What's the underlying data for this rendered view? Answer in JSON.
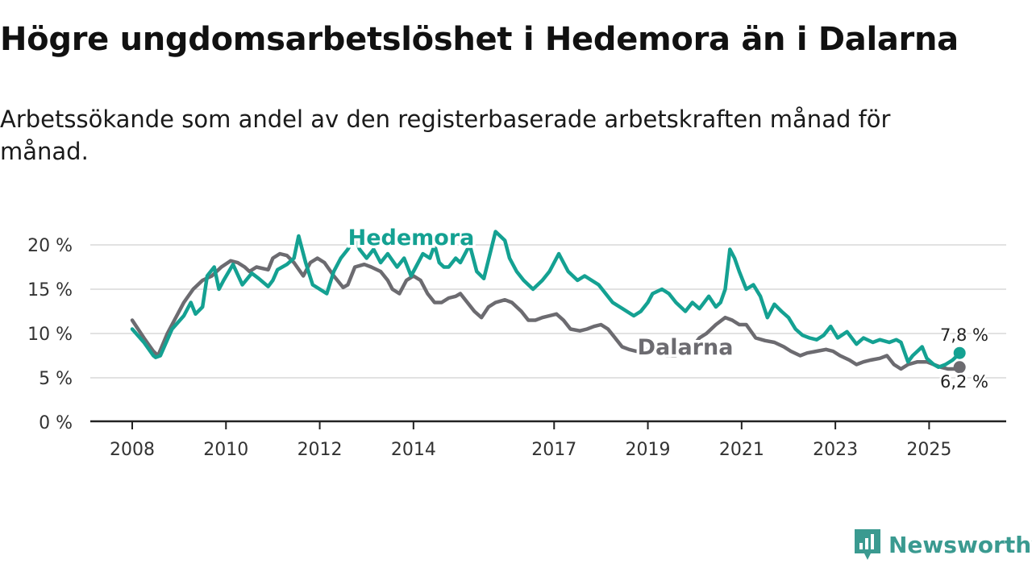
{
  "title": "Högre ungdomsarbetslöshet i Hedemora än i Dalarna",
  "subtitle": "Arbetssökande som andel av den registerbaserade arbetskraften månad för månad.",
  "brand": {
    "name": "Newsworthy",
    "color": "#3a9a90",
    "icon": "newsworthy-logo-icon"
  },
  "chart_data": {
    "type": "line",
    "ylim": [
      0,
      20
    ],
    "yticks": [
      0,
      5,
      10,
      15,
      20
    ],
    "ytick_labels": [
      "0 %",
      "5 %",
      "10 %",
      "15 %",
      "20 %"
    ],
    "xlim": [
      2008.0,
      2025.75
    ],
    "xticks": [
      2008,
      2010,
      2012,
      2014,
      2017,
      2019,
      2021,
      2023,
      2025
    ],
    "xtick_labels": [
      "2008",
      "2010",
      "2012",
      "2014",
      "2017",
      "2019",
      "2021",
      "2023",
      "2025"
    ],
    "grid": true,
    "series": [
      {
        "name": "Hedemora",
        "color": "#14a192",
        "label": "Hedemora",
        "end_label": "7,8 %",
        "x": [
          2008.0,
          2008.25,
          2008.45,
          2008.5,
          2008.6,
          2008.85,
          2009.1,
          2009.25,
          2009.35,
          2009.5,
          2009.6,
          2009.75,
          2009.85,
          2009.95,
          2010.15,
          2010.35,
          2010.55,
          2010.7,
          2010.9,
          2011.0,
          2011.1,
          2011.3,
          2011.45,
          2011.55,
          2011.7,
          2011.85,
          2012.0,
          2012.15,
          2012.3,
          2012.45,
          2012.6,
          2012.7,
          2012.75,
          2012.85,
          2013.0,
          2013.15,
          2013.3,
          2013.45,
          2013.65,
          2013.8,
          2013.95,
          2014.05,
          2014.2,
          2014.35,
          2014.45,
          2014.55,
          2014.65,
          2014.75,
          2014.9,
          2015.0,
          2015.1,
          2015.2,
          2015.35,
          2015.5,
          2015.75,
          2015.95,
          2016.05,
          2016.2,
          2016.35,
          2016.55,
          2016.75,
          2016.9,
          2017.1,
          2017.3,
          2017.5,
          2017.65,
          2017.8,
          2017.95,
          2018.1,
          2018.25,
          2018.4,
          2018.55,
          2018.7,
          2018.85,
          2019.0,
          2019.1,
          2019.3,
          2019.45,
          2019.6,
          2019.8,
          2019.95,
          2020.1,
          2020.3,
          2020.45,
          2020.55,
          2020.65,
          2020.75,
          2020.85,
          2020.95,
          2021.1,
          2021.25,
          2021.4,
          2021.55,
          2021.7,
          2021.85,
          2022.0,
          2022.15,
          2022.3,
          2022.45,
          2022.6,
          2022.75,
          2022.9,
          2023.05,
          2023.25,
          2023.45,
          2023.6,
          2023.8,
          2023.95,
          2024.15,
          2024.3,
          2024.4,
          2024.55,
          2024.65,
          2024.75,
          2024.85,
          2024.95,
          2025.1,
          2025.2,
          2025.35,
          2025.5,
          2025.6,
          2025.65
        ],
        "values": [
          10.5,
          9.0,
          7.5,
          7.3,
          7.5,
          10.5,
          12.0,
          13.5,
          12.2,
          13.0,
          16.5,
          17.5,
          15.0,
          16.0,
          17.8,
          15.5,
          16.8,
          16.2,
          15.3,
          16.0,
          17.2,
          17.8,
          18.5,
          21.0,
          18.0,
          15.5,
          15.0,
          14.5,
          17.0,
          18.5,
          19.5,
          20.5,
          20.8,
          19.5,
          18.5,
          19.5,
          18.0,
          19.0,
          17.5,
          18.5,
          16.5,
          17.5,
          19.0,
          18.5,
          20.0,
          18.0,
          17.5,
          17.5,
          18.5,
          18.0,
          19.0,
          20.0,
          17.0,
          16.2,
          21.5,
          20.5,
          18.5,
          17.0,
          16.0,
          15.0,
          16.0,
          17.0,
          19.0,
          17.0,
          16.0,
          16.5,
          16.0,
          15.5,
          14.5,
          13.5,
          13.0,
          12.5,
          12.0,
          12.5,
          13.5,
          14.5,
          15.0,
          14.5,
          13.5,
          12.5,
          13.5,
          12.8,
          14.2,
          13.0,
          13.5,
          15.0,
          19.5,
          18.5,
          17.0,
          15.0,
          15.5,
          14.2,
          11.8,
          13.3,
          12.5,
          11.8,
          10.5,
          9.8,
          9.5,
          9.3,
          9.8,
          10.8,
          9.5,
          10.2,
          8.8,
          9.5,
          9.0,
          9.3,
          9.0,
          9.3,
          9.0,
          6.8,
          7.5,
          8.0,
          8.5,
          7.2,
          6.5,
          6.2,
          6.5,
          7.0,
          7.5,
          7.8
        ]
      },
      {
        "name": "Dalarna",
        "color": "#6c6b70",
        "label": "Dalarna",
        "end_label": "6,2 %",
        "x": [
          2008.0,
          2008.25,
          2008.45,
          2008.55,
          2008.75,
          2008.9,
          2009.1,
          2009.3,
          2009.5,
          2009.7,
          2009.9,
          2010.1,
          2010.25,
          2010.4,
          2010.5,
          2010.65,
          2010.9,
          2011.0,
          2011.15,
          2011.3,
          2011.45,
          2011.65,
          2011.8,
          2011.95,
          2012.1,
          2012.3,
          2012.5,
          2012.6,
          2012.75,
          2012.95,
          2013.1,
          2013.3,
          2013.45,
          2013.55,
          2013.7,
          2013.85,
          2014.0,
          2014.15,
          2014.3,
          2014.45,
          2014.6,
          2014.75,
          2014.9,
          2015.0,
          2015.15,
          2015.3,
          2015.45,
          2015.6,
          2015.75,
          2015.95,
          2016.1,
          2016.3,
          2016.45,
          2016.6,
          2016.75,
          2016.9,
          2017.05,
          2017.2,
          2017.35,
          2017.55,
          2017.7,
          2017.85,
          2018.0,
          2018.15,
          2018.3,
          2018.45,
          2018.6,
          2018.75,
          2019.0,
          2019.1,
          2019.25,
          2019.4,
          2019.6,
          2019.75,
          2019.95,
          2020.1,
          2020.25,
          2020.45,
          2020.65,
          2020.8,
          2020.95,
          2021.1,
          2021.3,
          2021.5,
          2021.7,
          2021.9,
          2022.05,
          2022.25,
          2022.4,
          2022.6,
          2022.8,
          2022.95,
          2023.1,
          2023.3,
          2023.45,
          2023.6,
          2023.75,
          2023.95,
          2024.1,
          2024.25,
          2024.4,
          2024.55,
          2024.75,
          2024.95,
          2025.1,
          2025.25,
          2025.4,
          2025.55,
          2025.65
        ],
        "values": [
          11.5,
          9.5,
          8.0,
          7.5,
          10.0,
          11.5,
          13.5,
          15.0,
          16.0,
          16.5,
          17.5,
          18.2,
          18.0,
          17.5,
          17.0,
          17.5,
          17.2,
          18.5,
          19.0,
          18.8,
          18.0,
          16.5,
          18.0,
          18.5,
          18.0,
          16.5,
          15.2,
          15.5,
          17.5,
          17.8,
          17.5,
          17.0,
          16.0,
          15.0,
          14.5,
          16.0,
          16.5,
          16.0,
          14.5,
          13.5,
          13.5,
          14.0,
          14.2,
          14.5,
          13.5,
          12.5,
          11.8,
          13.0,
          13.5,
          13.8,
          13.5,
          12.5,
          11.5,
          11.5,
          11.8,
          12.0,
          12.2,
          11.5,
          10.5,
          10.3,
          10.5,
          10.8,
          11.0,
          10.5,
          9.5,
          8.5,
          8.2,
          8.0,
          8.2,
          8.5,
          7.8,
          7.5,
          7.5,
          8.0,
          8.5,
          9.5,
          10.0,
          11.0,
          11.8,
          11.5,
          11.0,
          11.0,
          9.5,
          9.2,
          9.0,
          8.5,
          8.0,
          7.5,
          7.8,
          8.0,
          8.2,
          8.0,
          7.5,
          7.0,
          6.5,
          6.8,
          7.0,
          7.2,
          7.5,
          6.5,
          6.0,
          6.5,
          6.8,
          6.8,
          6.5,
          6.2,
          6.0,
          6.0,
          6.2
        ]
      }
    ]
  }
}
